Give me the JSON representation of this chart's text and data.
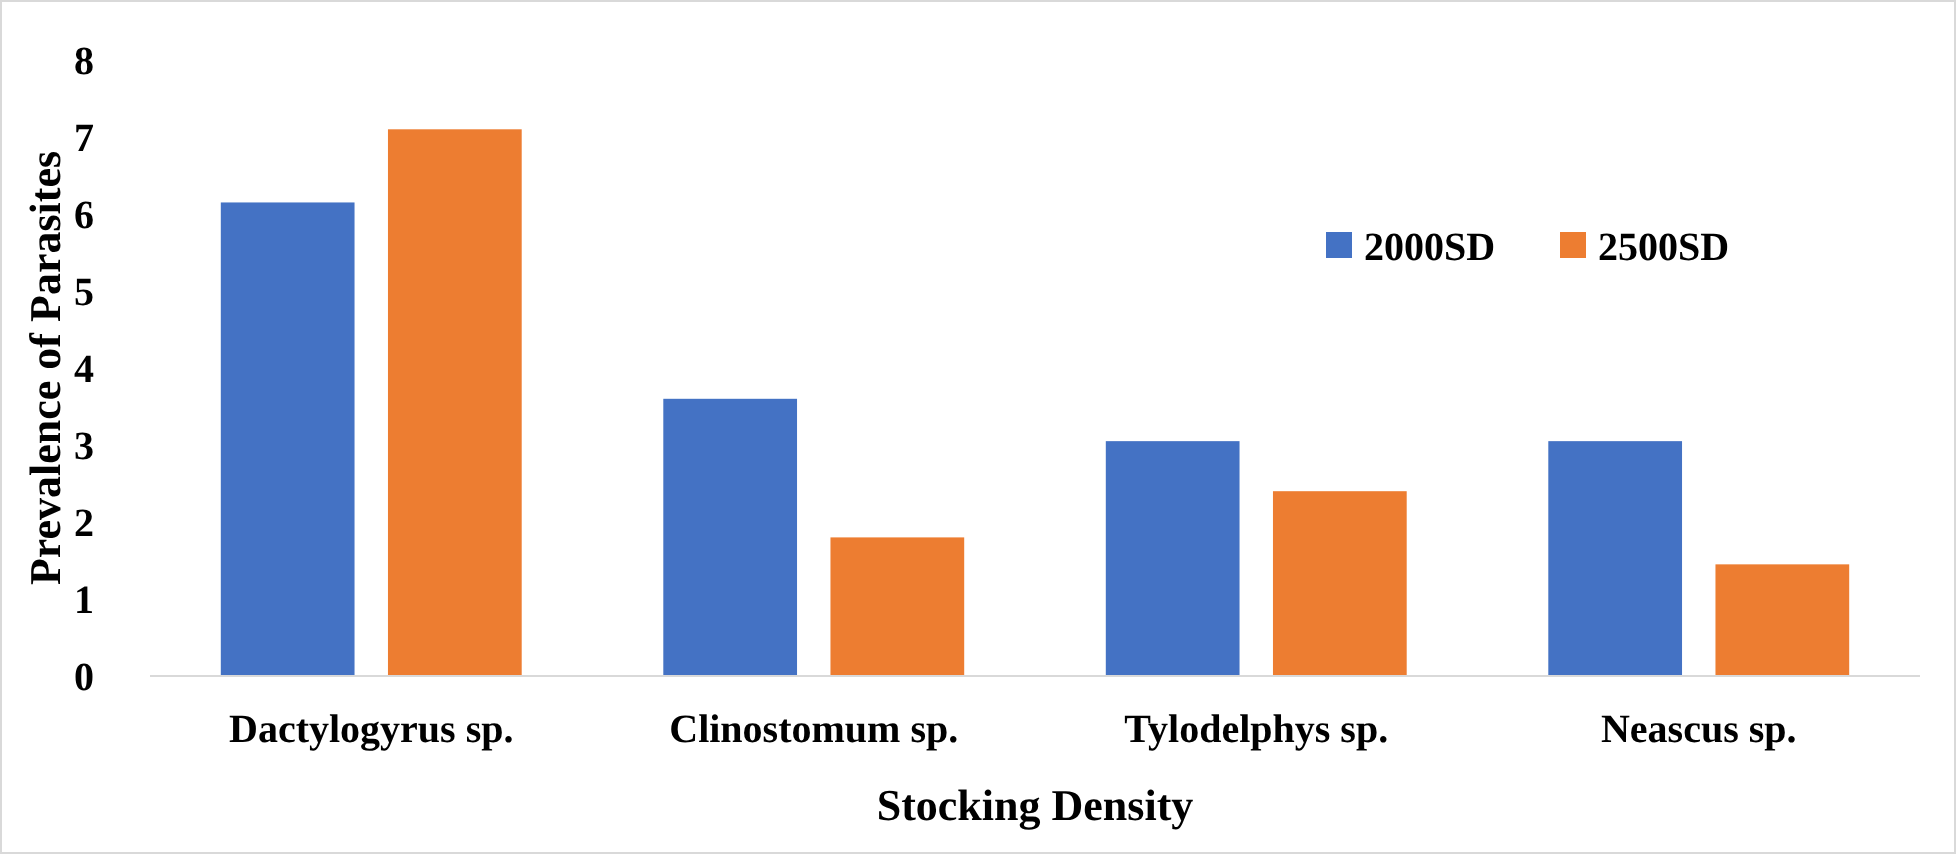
{
  "chart_data": {
    "type": "bar",
    "xlabel": "Stocking Density",
    "ylabel": "Prevalence of Parasites",
    "categories": [
      "Dactylogyrus sp.",
      "Clinostomum sp.",
      "Tylodelphys sp.",
      "Neascus sp."
    ],
    "series": [
      {
        "name": "2000SD",
        "color": "#4472c4",
        "values": [
          6.15,
          3.6,
          3.05,
          3.05
        ]
      },
      {
        "name": "2500SD",
        "color": "#ed7d31",
        "values": [
          7.1,
          1.8,
          2.4,
          1.45
        ]
      }
    ],
    "ylim": [
      0,
      8
    ],
    "yticks": [
      0,
      1,
      2,
      3,
      4,
      5,
      6,
      7,
      8
    ],
    "grid": false,
    "legend": "top right"
  }
}
